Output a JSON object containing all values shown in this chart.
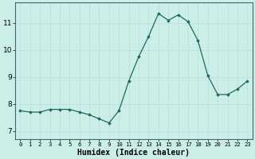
{
  "x": [
    0,
    1,
    2,
    3,
    4,
    5,
    6,
    7,
    8,
    9,
    10,
    11,
    12,
    13,
    14,
    15,
    16,
    17,
    18,
    19,
    20,
    21,
    22,
    23
  ],
  "y": [
    7.75,
    7.7,
    7.7,
    7.8,
    7.8,
    7.8,
    7.7,
    7.6,
    7.45,
    7.3,
    7.75,
    8.85,
    9.75,
    10.5,
    11.35,
    11.1,
    11.3,
    11.05,
    10.35,
    9.05,
    8.35,
    8.35,
    8.55,
    8.85
  ],
  "line_color": "#1a6b5a",
  "marker": "D",
  "marker_size": 1.8,
  "bg_color": "#cceee8",
  "grid_color": "#b8ddd8",
  "xlabel": "Humidex (Indice chaleur)",
  "xlabel_fontsize": 7,
  "ylabel_ticks": [
    7,
    8,
    9,
    10,
    11
  ],
  "xlim": [
    -0.5,
    23.5
  ],
  "ylim": [
    6.7,
    11.75
  ],
  "xtick_fontsize": 5.2,
  "ytick_fontsize": 6.5
}
